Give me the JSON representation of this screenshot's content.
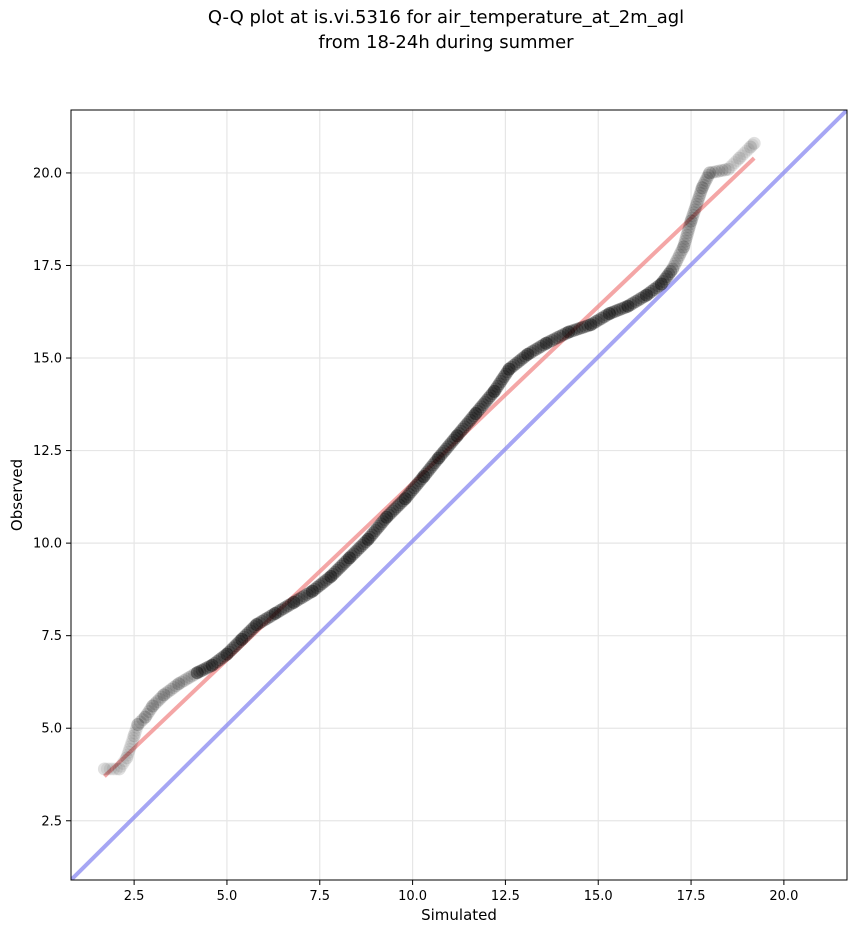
{
  "chart_data": {
    "type": "scatter",
    "title": "Q-Q plot at is.vi.5316 for air_temperature_at_2m_agl",
    "subtitle": "from 18-24h during summer",
    "xlabel": "Simulated",
    "ylabel": "Observed",
    "xlim": [
      0.8,
      21.7
    ],
    "ylim": [
      0.9,
      21.7
    ],
    "xticks": [
      2.5,
      5.0,
      7.5,
      10.0,
      12.5,
      15.0,
      17.5,
      20.0
    ],
    "yticks": [
      2.5,
      5.0,
      7.5,
      10.0,
      12.5,
      15.0,
      17.5,
      20.0
    ],
    "xtick_labels": [
      "2.5",
      "5.0",
      "7.5",
      "10.0",
      "12.5",
      "15.0",
      "17.5",
      "20.0"
    ],
    "ytick_labels": [
      "2.5",
      "5.0",
      "7.5",
      "10.0",
      "12.5",
      "15.0",
      "17.5",
      "20.0"
    ],
    "grid": true,
    "series": [
      {
        "kind": "quantile_points",
        "color": "#000000",
        "points": [
          [
            1.7,
            3.9
          ],
          [
            2.1,
            3.9
          ],
          [
            2.3,
            4.2
          ],
          [
            2.5,
            4.8
          ],
          [
            2.6,
            5.1
          ],
          [
            2.8,
            5.3
          ],
          [
            3.0,
            5.6
          ],
          [
            3.3,
            5.9
          ],
          [
            3.7,
            6.2
          ],
          [
            4.2,
            6.5
          ],
          [
            4.6,
            6.7
          ],
          [
            5.0,
            7.0
          ],
          [
            5.4,
            7.4
          ],
          [
            5.8,
            7.8
          ],
          [
            6.3,
            8.1
          ],
          [
            6.8,
            8.4
          ],
          [
            7.3,
            8.7
          ],
          [
            7.8,
            9.1
          ],
          [
            8.3,
            9.6
          ],
          [
            8.8,
            10.1
          ],
          [
            9.3,
            10.7
          ],
          [
            9.8,
            11.2
          ],
          [
            10.3,
            11.8
          ],
          [
            10.7,
            12.3
          ],
          [
            11.2,
            12.9
          ],
          [
            11.7,
            13.5
          ],
          [
            12.2,
            14.1
          ],
          [
            12.6,
            14.7
          ],
          [
            13.1,
            15.1
          ],
          [
            13.6,
            15.4
          ],
          [
            14.2,
            15.7
          ],
          [
            14.8,
            15.9
          ],
          [
            15.3,
            16.2
          ],
          [
            15.8,
            16.4
          ],
          [
            16.3,
            16.7
          ],
          [
            16.7,
            17.0
          ],
          [
            17.0,
            17.4
          ],
          [
            17.3,
            18.0
          ],
          [
            17.5,
            18.7
          ],
          [
            17.8,
            19.6
          ],
          [
            18.0,
            20.0
          ],
          [
            18.5,
            20.1
          ],
          [
            18.8,
            20.4
          ],
          [
            19.1,
            20.7
          ],
          [
            19.2,
            20.8
          ]
        ]
      },
      {
        "kind": "fit_line",
        "color": "#f08080",
        "from": [
          1.7,
          3.7
        ],
        "to": [
          19.2,
          20.4
        ]
      },
      {
        "kind": "identity_line",
        "color": "#8080f0",
        "from": [
          0.8,
          0.9
        ],
        "to": [
          21.7,
          21.7
        ]
      }
    ]
  }
}
